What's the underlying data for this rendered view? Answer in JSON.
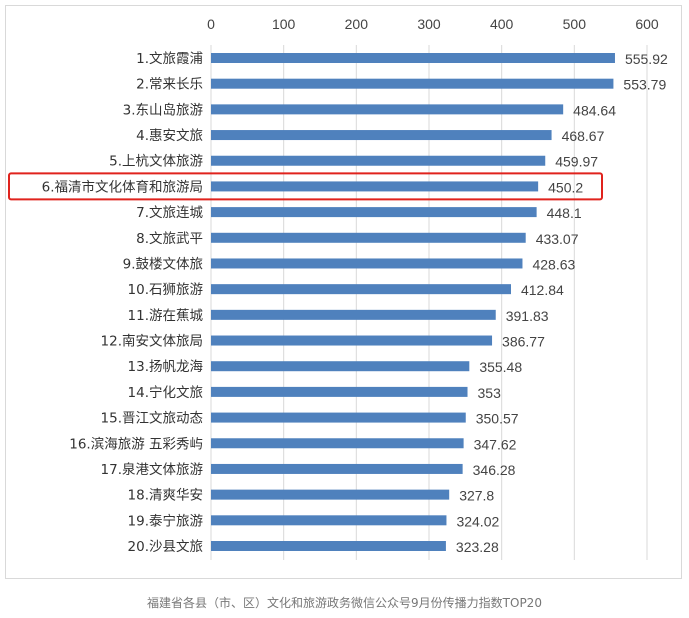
{
  "chart_data": {
    "type": "bar",
    "orientation": "horizontal",
    "categories": [
      "1.文旅霞浦",
      "2.常来长乐",
      "3.东山岛旅游",
      "4.惠安文旅",
      "5.上杭文体旅游",
      "6.福清市文化体育和旅游局",
      "7.文旅连城",
      "8.文旅武平",
      "9.鼓楼文体旅",
      "10.石狮旅游",
      "11.游在蕉城",
      "12.南安文体旅局",
      "13.扬帆龙海",
      "14.宁化文旅",
      "15.晋江文旅动态",
      "16.滨海旅游 五彩秀屿",
      "17.泉港文体旅游",
      "18.清爽华安",
      "19.泰宁旅游",
      "20.沙县文旅"
    ],
    "values": [
      555.92,
      553.79,
      484.64,
      468.67,
      459.97,
      450.2,
      448.1,
      433.07,
      428.63,
      412.84,
      391.83,
      386.77,
      355.48,
      353,
      350.57,
      347.62,
      346.28,
      327.8,
      324.02,
      323.28
    ],
    "value_labels": [
      "555.92",
      "553.79",
      "484.64",
      "468.67",
      "459.97",
      "450.2",
      "448.1",
      "433.07",
      "428.63",
      "412.84",
      "391.83",
      "386.77",
      "355.48",
      "353",
      "350.57",
      "347.62",
      "346.28",
      "327.8",
      "324.02",
      "323.28"
    ],
    "xlim": [
      0,
      600
    ],
    "xticks": [
      "0",
      "100",
      "200",
      "300",
      "400",
      "500",
      "600"
    ],
    "xaxis_position": "top",
    "grid": true,
    "highlighted_category": "6.福清市文化体育和旅游局",
    "bar_color": "#4f81bd",
    "highlight_color": "#e0231d"
  },
  "caption": "福建省各县（市、区）文化和旅游政务微信公众号9月份传播力指数TOP20"
}
